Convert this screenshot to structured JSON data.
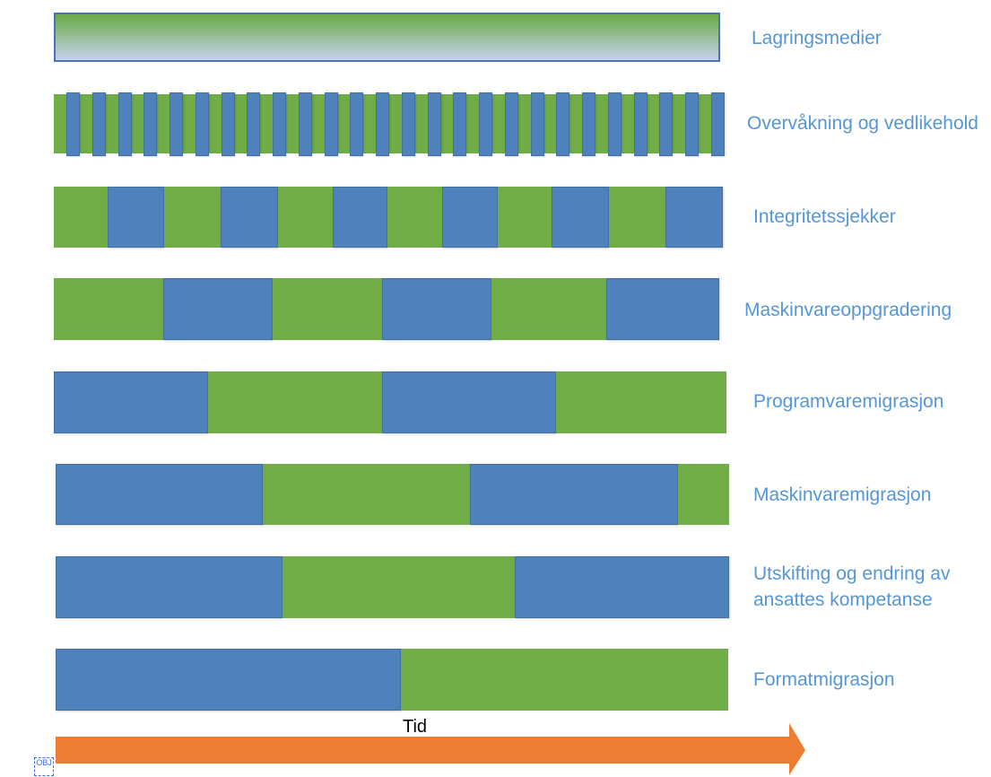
{
  "diagram": {
    "rows": [
      {
        "label": "Lagringsmedier"
      },
      {
        "label": "Overvåkning og vedlikehold"
      },
      {
        "label": "Integritetssjekker"
      },
      {
        "label": "Maskinvareoppgradering"
      },
      {
        "label": "Programvaremigrasjon"
      },
      {
        "label": "Maskinvaremigrasjon"
      },
      {
        "label_lines": [
          "Utskifting og endring av",
          "ansattes kompetanse"
        ]
      },
      {
        "label": "Formatmigrasjon"
      }
    ],
    "time_axis": {
      "label": "Tid",
      "arrow_icon": "right-arrow-icon"
    },
    "object_placeholder": {
      "text": "OBJ",
      "icon": "object-placeholder-icon"
    }
  },
  "colors": {
    "green": "#70ad47",
    "blue": "#4f81bd",
    "blue_border": "#41719c",
    "storage_gradient_top": "#6aab45",
    "storage_gradient_bottom": "#c7d1ee",
    "storage_border": "#4a72b5",
    "label_text": "#5596d6",
    "axis_label_text": "#000000",
    "time_arrow": "#ed7d31",
    "placeholder": "#3d6fd9"
  }
}
